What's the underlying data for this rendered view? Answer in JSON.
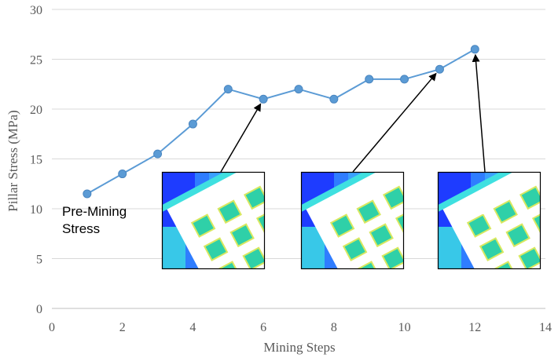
{
  "chart_data": {
    "type": "line",
    "title": "",
    "xlabel": "Mining Steps",
    "ylabel": "Pillar Stress (MPa)",
    "xlim": [
      0,
      14
    ],
    "ylim": [
      0,
      30
    ],
    "xticks": [
      0,
      2,
      4,
      6,
      8,
      10,
      12,
      14
    ],
    "yticks": [
      0,
      5,
      10,
      15,
      20,
      25,
      30
    ],
    "grid": "horizontal",
    "legend": "none",
    "series": [
      {
        "x": [
          1,
          2,
          3,
          4,
          5,
          6,
          7,
          8,
          9,
          10,
          11,
          12
        ],
        "y": [
          11.5,
          13.5,
          15.5,
          18.5,
          22,
          21,
          22,
          21,
          23,
          23,
          24,
          26
        ]
      }
    ],
    "annotations": [
      {
        "text": "Pre-Mining\nStress",
        "lines": [
          "Pre-Mining",
          "Stress"
        ]
      }
    ],
    "insets": [
      {
        "label": "stress-contour-inset",
        "points_to": [
          6,
          21
        ]
      },
      {
        "label": "stress-contour-inset",
        "points_to": [
          11,
          24
        ]
      },
      {
        "label": "stress-contour-inset",
        "points_to": [
          12,
          26
        ]
      }
    ],
    "colors": {
      "series": "#5b9bd5",
      "marker": "#5b9bd5",
      "grid": "#d9d9d9",
      "axis": "#bfbfbf",
      "inset_bg": "#1e3cff",
      "pillar": "#2fd0a8"
    }
  }
}
